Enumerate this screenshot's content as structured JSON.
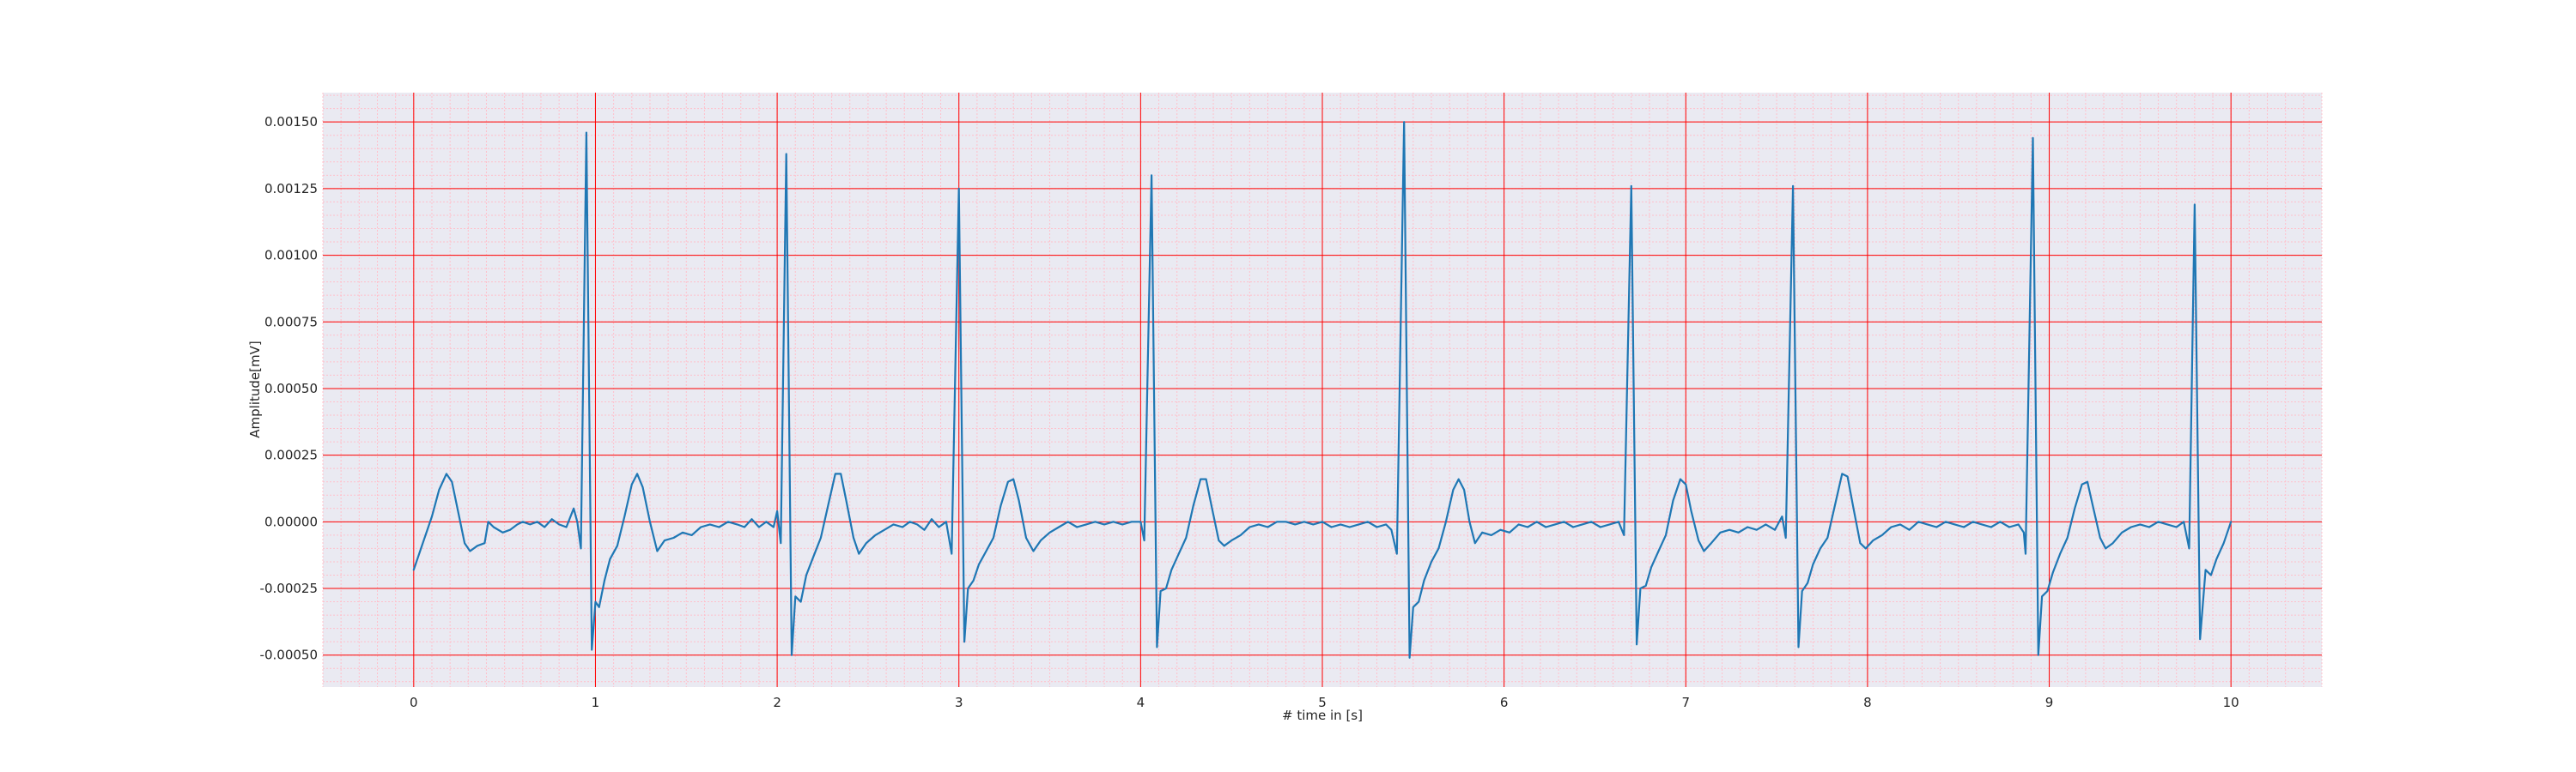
{
  "chart_data": {
    "type": "line",
    "title": "",
    "xlabel": "# time in [s]",
    "ylabel": "Amplitude[mV]",
    "xlim": [
      -0.5,
      10.5
    ],
    "ylim": [
      -0.00062,
      0.00161
    ],
    "x_ticks": [
      0,
      1,
      2,
      3,
      4,
      5,
      6,
      7,
      8,
      9,
      10
    ],
    "x_tick_labels": [
      "0",
      "1",
      "2",
      "3",
      "4",
      "5",
      "6",
      "7",
      "8",
      "9",
      "10"
    ],
    "y_ticks": [
      0.0015,
      0.00125,
      0.001,
      0.00075,
      0.0005,
      0.00025,
      0,
      -0.00025,
      -0.0005
    ],
    "y_tick_labels": [
      "0.00150",
      "0.00125",
      "0.00100",
      "0.00075",
      "0.00050",
      "0.00025",
      "0.00000",
      "-0.00025",
      "-0.00050"
    ],
    "grid": true,
    "colors": {
      "background": "#eaeaf2",
      "major_grid": "#ff0000",
      "minor_grid": "#ffc0cb",
      "line": "#1f77b4"
    },
    "series": [
      {
        "values": [
          [
            0.0,
            -0.00018
          ],
          [
            0.05,
            -8e-05
          ],
          [
            0.1,
            2e-05
          ],
          [
            0.14,
            0.00012
          ],
          [
            0.18,
            0.00018
          ],
          [
            0.21,
            0.00015
          ],
          [
            0.25,
            2e-05
          ],
          [
            0.28,
            -8e-05
          ],
          [
            0.31,
            -0.00011
          ],
          [
            0.35,
            -9e-05
          ],
          [
            0.39,
            -8e-05
          ],
          [
            0.41,
            0.0
          ],
          [
            0.44,
            -2e-05
          ],
          [
            0.49,
            -4e-05
          ],
          [
            0.53,
            -3e-05
          ],
          [
            0.57,
            -1e-05
          ],
          [
            0.6,
            0.0
          ],
          [
            0.64,
            -1e-05
          ],
          [
            0.68,
            0.0
          ],
          [
            0.72,
            -2e-05
          ],
          [
            0.76,
            1e-05
          ],
          [
            0.8,
            -1e-05
          ],
          [
            0.84,
            -2e-05
          ],
          [
            0.88,
            5e-05
          ],
          [
            0.9,
            0.0
          ],
          [
            0.92,
            -0.0001
          ],
          [
            0.95,
            0.00146
          ],
          [
            0.98,
            -0.00048
          ],
          [
            1.0,
            -0.0003
          ],
          [
            1.02,
            -0.00032
          ],
          [
            1.05,
            -0.00022
          ],
          [
            1.08,
            -0.00014
          ],
          [
            1.12,
            -9e-05
          ],
          [
            1.16,
            2e-05
          ],
          [
            1.2,
            0.00014
          ],
          [
            1.23,
            0.00018
          ],
          [
            1.26,
            0.00013
          ],
          [
            1.3,
            0.0
          ],
          [
            1.34,
            -0.00011
          ],
          [
            1.38,
            -7e-05
          ],
          [
            1.43,
            -6e-05
          ],
          [
            1.48,
            -4e-05
          ],
          [
            1.53,
            -5e-05
          ],
          [
            1.58,
            -2e-05
          ],
          [
            1.63,
            -1e-05
          ],
          [
            1.68,
            -2e-05
          ],
          [
            1.73,
            0.0
          ],
          [
            1.78,
            -1e-05
          ],
          [
            1.82,
            -2e-05
          ],
          [
            1.86,
            1e-05
          ],
          [
            1.9,
            -2e-05
          ],
          [
            1.94,
            0.0
          ],
          [
            1.98,
            -2e-05
          ],
          [
            2.0,
            4e-05
          ],
          [
            2.02,
            -8e-05
          ],
          [
            2.05,
            0.00138
          ],
          [
            2.08,
            -0.0005
          ],
          [
            2.1,
            -0.00028
          ],
          [
            2.13,
            -0.0003
          ],
          [
            2.16,
            -0.0002
          ],
          [
            2.2,
            -0.00013
          ],
          [
            2.24,
            -6e-05
          ],
          [
            2.28,
            6e-05
          ],
          [
            2.32,
            0.00018
          ],
          [
            2.35,
            0.00018
          ],
          [
            2.38,
            8e-05
          ],
          [
            2.42,
            -6e-05
          ],
          [
            2.45,
            -0.00012
          ],
          [
            2.49,
            -8e-05
          ],
          [
            2.54,
            -5e-05
          ],
          [
            2.59,
            -3e-05
          ],
          [
            2.64,
            -1e-05
          ],
          [
            2.69,
            -2e-05
          ],
          [
            2.73,
            0.0
          ],
          [
            2.77,
            -1e-05
          ],
          [
            2.81,
            -3e-05
          ],
          [
            2.85,
            1e-05
          ],
          [
            2.89,
            -2e-05
          ],
          [
            2.93,
            0.0
          ],
          [
            2.96,
            -0.00012
          ],
          [
            3.0,
            0.00125
          ],
          [
            3.03,
            -0.00045
          ],
          [
            3.05,
            -0.00025
          ],
          [
            3.08,
            -0.00022
          ],
          [
            3.11,
            -0.00016
          ],
          [
            3.15,
            -0.00011
          ],
          [
            3.19,
            -6e-05
          ],
          [
            3.23,
            6e-05
          ],
          [
            3.27,
            0.00015
          ],
          [
            3.3,
            0.00016
          ],
          [
            3.33,
            8e-05
          ],
          [
            3.37,
            -6e-05
          ],
          [
            3.41,
            -0.00011
          ],
          [
            3.45,
            -7e-05
          ],
          [
            3.5,
            -4e-05
          ],
          [
            3.55,
            -2e-05
          ],
          [
            3.6,
            0.0
          ],
          [
            3.65,
            -2e-05
          ],
          [
            3.7,
            -1e-05
          ],
          [
            3.75,
            0.0
          ],
          [
            3.8,
            -1e-05
          ],
          [
            3.85,
            0.0
          ],
          [
            3.9,
            -1e-05
          ],
          [
            3.95,
            0.0
          ],
          [
            4.0,
            0.0
          ],
          [
            4.02,
            -7e-05
          ],
          [
            4.06,
            0.0013
          ],
          [
            4.09,
            -0.00047
          ],
          [
            4.11,
            -0.00026
          ],
          [
            4.14,
            -0.00025
          ],
          [
            4.17,
            -0.00018
          ],
          [
            4.21,
            -0.00012
          ],
          [
            4.25,
            -6e-05
          ],
          [
            4.29,
            6e-05
          ],
          [
            4.33,
            0.00016
          ],
          [
            4.36,
            0.00016
          ],
          [
            4.39,
            6e-05
          ],
          [
            4.43,
            -7e-05
          ],
          [
            4.46,
            -9e-05
          ],
          [
            4.5,
            -7e-05
          ],
          [
            4.55,
            -5e-05
          ],
          [
            4.6,
            -2e-05
          ],
          [
            4.65,
            -1e-05
          ],
          [
            4.7,
            -2e-05
          ],
          [
            4.75,
            0.0
          ],
          [
            4.8,
            0.0
          ],
          [
            4.85,
            -1e-05
          ],
          [
            4.9,
            0.0
          ],
          [
            4.95,
            -1e-05
          ],
          [
            5.0,
            0.0
          ],
          [
            5.05,
            -2e-05
          ],
          [
            5.1,
            -1e-05
          ],
          [
            5.15,
            -2e-05
          ],
          [
            5.2,
            -1e-05
          ],
          [
            5.25,
            0.0
          ],
          [
            5.3,
            -2e-05
          ],
          [
            5.35,
            -1e-05
          ],
          [
            5.38,
            -3e-05
          ],
          [
            5.41,
            -0.00012
          ],
          [
            5.45,
            0.0015
          ],
          [
            5.48,
            -0.00051
          ],
          [
            5.5,
            -0.00032
          ],
          [
            5.53,
            -0.0003
          ],
          [
            5.56,
            -0.00022
          ],
          [
            5.6,
            -0.00015
          ],
          [
            5.64,
            -0.0001
          ],
          [
            5.68,
            0.0
          ],
          [
            5.72,
            0.00012
          ],
          [
            5.75,
            0.00016
          ],
          [
            5.78,
            0.00012
          ],
          [
            5.81,
            0.0
          ],
          [
            5.84,
            -8e-05
          ],
          [
            5.88,
            -4e-05
          ],
          [
            5.93,
            -5e-05
          ],
          [
            5.98,
            -3e-05
          ],
          [
            6.03,
            -4e-05
          ],
          [
            6.08,
            -1e-05
          ],
          [
            6.13,
            -2e-05
          ],
          [
            6.18,
            0.0
          ],
          [
            6.23,
            -2e-05
          ],
          [
            6.28,
            -1e-05
          ],
          [
            6.33,
            0.0
          ],
          [
            6.38,
            -2e-05
          ],
          [
            6.43,
            -1e-05
          ],
          [
            6.48,
            0.0
          ],
          [
            6.53,
            -2e-05
          ],
          [
            6.58,
            -1e-05
          ],
          [
            6.63,
            0.0
          ],
          [
            6.66,
            -5e-05
          ],
          [
            6.7,
            0.00126
          ],
          [
            6.73,
            -0.00046
          ],
          [
            6.75,
            -0.00025
          ],
          [
            6.78,
            -0.00024
          ],
          [
            6.81,
            -0.00017
          ],
          [
            6.85,
            -0.00011
          ],
          [
            6.89,
            -5e-05
          ],
          [
            6.93,
            8e-05
          ],
          [
            6.97,
            0.00016
          ],
          [
            7.0,
            0.00014
          ],
          [
            7.03,
            4e-05
          ],
          [
            7.07,
            -7e-05
          ],
          [
            7.1,
            -0.00011
          ],
          [
            7.14,
            -8e-05
          ],
          [
            7.19,
            -4e-05
          ],
          [
            7.24,
            -3e-05
          ],
          [
            7.29,
            -4e-05
          ],
          [
            7.34,
            -2e-05
          ],
          [
            7.39,
            -3e-05
          ],
          [
            7.44,
            -1e-05
          ],
          [
            7.49,
            -3e-05
          ],
          [
            7.53,
            2e-05
          ],
          [
            7.55,
            -6e-05
          ],
          [
            7.59,
            0.00126
          ],
          [
            7.62,
            -0.00047
          ],
          [
            7.64,
            -0.00026
          ],
          [
            7.67,
            -0.00023
          ],
          [
            7.7,
            -0.00016
          ],
          [
            7.74,
            -0.0001
          ],
          [
            7.78,
            -6e-05
          ],
          [
            7.82,
            6e-05
          ],
          [
            7.86,
            0.00018
          ],
          [
            7.89,
            0.00017
          ],
          [
            7.92,
            6e-05
          ],
          [
            7.96,
            -8e-05
          ],
          [
            7.99,
            -0.0001
          ],
          [
            8.03,
            -7e-05
          ],
          [
            8.08,
            -5e-05
          ],
          [
            8.13,
            -2e-05
          ],
          [
            8.18,
            -1e-05
          ],
          [
            8.23,
            -3e-05
          ],
          [
            8.28,
            0.0
          ],
          [
            8.33,
            -1e-05
          ],
          [
            8.38,
            -2e-05
          ],
          [
            8.43,
            0.0
          ],
          [
            8.48,
            -1e-05
          ],
          [
            8.53,
            -2e-05
          ],
          [
            8.58,
            0.0
          ],
          [
            8.63,
            -1e-05
          ],
          [
            8.68,
            -2e-05
          ],
          [
            8.73,
            0.0
          ],
          [
            8.78,
            -2e-05
          ],
          [
            8.83,
            -1e-05
          ],
          [
            8.86,
            -4e-05
          ],
          [
            8.87,
            -0.00012
          ],
          [
            8.91,
            0.00144
          ],
          [
            8.94,
            -0.0005
          ],
          [
            8.96,
            -0.00028
          ],
          [
            8.99,
            -0.00026
          ],
          [
            9.02,
            -0.00019
          ],
          [
            9.06,
            -0.00012
          ],
          [
            9.1,
            -6e-05
          ],
          [
            9.14,
            5e-05
          ],
          [
            9.18,
            0.00014
          ],
          [
            9.21,
            0.00015
          ],
          [
            9.24,
            6e-05
          ],
          [
            9.28,
            -6e-05
          ],
          [
            9.31,
            -0.0001
          ],
          [
            9.35,
            -8e-05
          ],
          [
            9.4,
            -4e-05
          ],
          [
            9.45,
            -2e-05
          ],
          [
            9.5,
            -1e-05
          ],
          [
            9.55,
            -2e-05
          ],
          [
            9.6,
            0.0
          ],
          [
            9.65,
            -1e-05
          ],
          [
            9.7,
            -2e-05
          ],
          [
            9.74,
            0.0
          ],
          [
            9.77,
            -0.0001
          ],
          [
            9.8,
            0.00119
          ],
          [
            9.83,
            -0.00044
          ],
          [
            9.86,
            -0.00018
          ],
          [
            9.89,
            -0.0002
          ],
          [
            9.92,
            -0.00014
          ],
          [
            9.96,
            -8e-05
          ],
          [
            10.0,
            0.0
          ]
        ]
      }
    ]
  }
}
